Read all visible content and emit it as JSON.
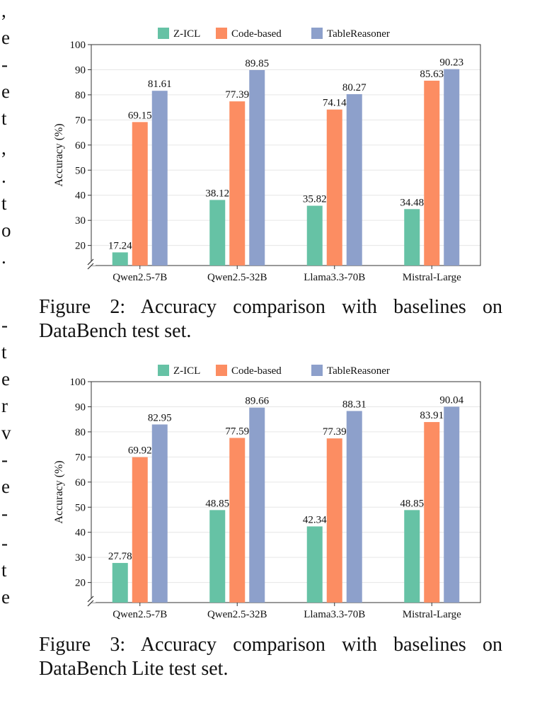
{
  "margin_fragments": [
    ",",
    "e",
    "-",
    "e",
    "t",
    ",",
    ".",
    "t",
    "o",
    ".",
    "-",
    "t",
    "e",
    "r",
    "v",
    "-",
    "e",
    "-",
    "-",
    "t",
    "e"
  ],
  "captions": [
    {
      "label": "Figure 2:",
      "text": "Accuracy comparison with baselines on DataBench test set."
    },
    {
      "label": "Figure 3:",
      "text": "Accuracy comparison with baselines on DataBench Lite test set."
    }
  ],
  "colors": {
    "Z-ICL": "#66c2a5",
    "Code-based": "#fc8d62",
    "TableReasoner": "#8da0cb"
  },
  "chart_data": [
    {
      "type": "bar",
      "title": "",
      "xlabel": "",
      "ylabel": "Accuracy (%)",
      "ylim": [
        12,
        100
      ],
      "yticks": [
        20,
        30,
        40,
        50,
        60,
        70,
        80,
        90,
        100
      ],
      "axis_break": true,
      "grid": true,
      "legend_position": "top-center",
      "categories": [
        "Qwen2.5-7B",
        "Qwen2.5-32B",
        "Llama3.3-70B",
        "Mistral-Large"
      ],
      "series": [
        {
          "name": "Z-ICL",
          "values": [
            17.24,
            38.12,
            35.82,
            34.48
          ]
        },
        {
          "name": "Code-based",
          "values": [
            69.15,
            77.39,
            74.14,
            85.63
          ]
        },
        {
          "name": "TableReasoner",
          "values": [
            81.61,
            89.85,
            80.27,
            90.23
          ]
        }
      ]
    },
    {
      "type": "bar",
      "title": "",
      "xlabel": "",
      "ylabel": "Accuracy (%)",
      "ylim": [
        12,
        100
      ],
      "yticks": [
        20,
        30,
        40,
        50,
        60,
        70,
        80,
        90,
        100
      ],
      "axis_break": true,
      "grid": true,
      "legend_position": "top-center",
      "categories": [
        "Qwen2.5-7B",
        "Qwen2.5-32B",
        "Llama3.3-70B",
        "Mistral-Large"
      ],
      "series": [
        {
          "name": "Z-ICL",
          "values": [
            27.78,
            48.85,
            42.34,
            48.85
          ]
        },
        {
          "name": "Code-based",
          "values": [
            69.92,
            77.59,
            77.39,
            83.91
          ]
        },
        {
          "name": "TableReasoner",
          "values": [
            82.95,
            89.66,
            88.31,
            90.04
          ]
        }
      ]
    }
  ]
}
